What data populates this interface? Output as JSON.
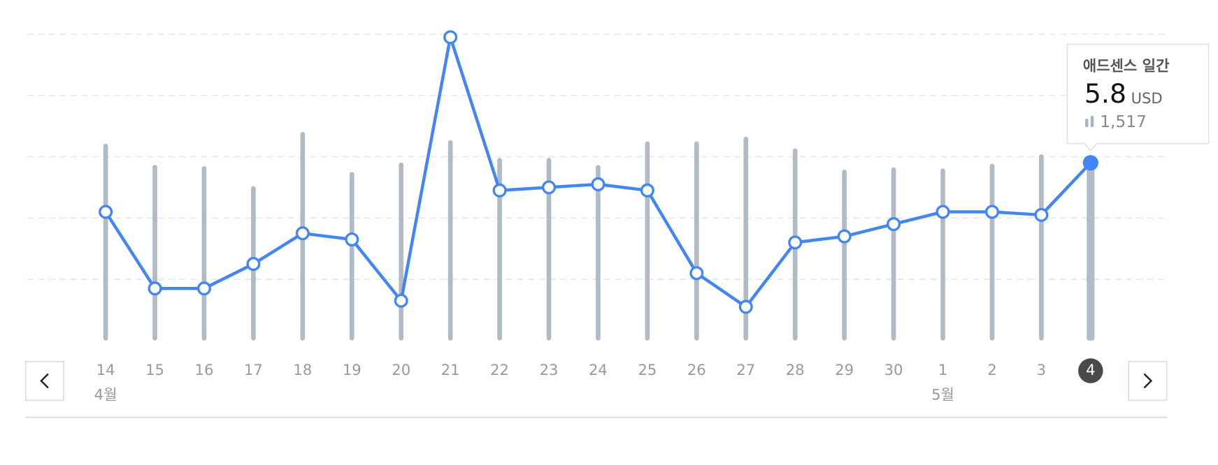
{
  "chart_data": {
    "type": "bar-line",
    "categories": [
      "14",
      "15",
      "16",
      "17",
      "18",
      "19",
      "20",
      "21",
      "22",
      "23",
      "24",
      "25",
      "26",
      "27",
      "28",
      "29",
      "30",
      "1",
      "2",
      "3",
      "4"
    ],
    "month_labels": [
      "4월",
      null,
      null,
      null,
      null,
      null,
      null,
      null,
      null,
      null,
      null,
      null,
      null,
      null,
      null,
      null,
      null,
      "5월",
      null,
      null,
      null
    ],
    "selected": "4",
    "series": [
      {
        "type": "bar",
        "axis": "y2",
        "color": "#b1bbc6",
        "values": [
          1670,
          1490,
          1480,
          1310,
          1770,
          1430,
          1510,
          1700,
          1550,
          1550,
          1490,
          1690,
          1690,
          1730,
          1630,
          1450,
          1470,
          1460,
          1500,
          1580,
          1517
        ]
      },
      {
        "type": "line",
        "color": "#4285f4",
        "values": [
          4.2,
          1.7,
          1.7,
          2.5,
          3.5,
          3.3,
          1.3,
          9.9,
          4.9,
          5.0,
          5.1,
          4.9,
          2.2,
          1.1,
          3.2,
          3.4,
          3.8,
          4.2,
          4.2,
          4.1,
          5.8
        ]
      }
    ],
    "ylim": [
      0,
      10
    ],
    "yticks": [
      2,
      4,
      6,
      8,
      10
    ],
    "grid": true,
    "y2lim": [
      0,
      2600
    ],
    "tooltip": {
      "title": "애드센스 일간",
      "value": 5.8,
      "unit": "USD",
      "views": {
        "value": 1517,
        "label": "1,517"
      }
    }
  }
}
